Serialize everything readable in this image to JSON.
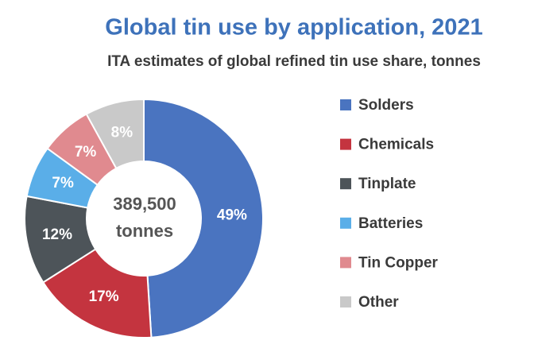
{
  "chart_data": {
    "type": "donut",
    "title": "Global tin use by application, 2021",
    "subtitle": "ITA estimates of global refined tin use share, tonnes",
    "center_label": [
      "389,500",
      "tonnes"
    ],
    "categories": [
      "Solders",
      "Chemicals",
      "Tinplate",
      "Batteries",
      "Tin Copper",
      "Other"
    ],
    "values": [
      49,
      17,
      12,
      7,
      7,
      8
    ],
    "value_labels": [
      "49%",
      "17%",
      "12%",
      "7%",
      "7%",
      "8%"
    ],
    "colors": [
      "#4a74c0",
      "#c4343f",
      "#4d5459",
      "#5aaee8",
      "#e08a8f",
      "#c9c9c9"
    ],
    "legend": "right"
  }
}
